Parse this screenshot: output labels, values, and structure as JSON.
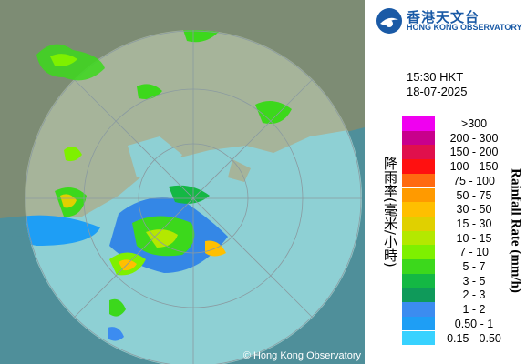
{
  "header": {
    "logo_chinese": "香港天文台",
    "logo_english": "HONG KONG OBSERVATORY"
  },
  "timestamp": {
    "time": "15:30 HKT",
    "date": "18-07-2025"
  },
  "legend": {
    "title_chinese": "降雨率(毫米/小時)",
    "title_english": "Rainfall Rate (mm/h)",
    "items": [
      {
        "label": ">300",
        "color": "#f000f0"
      },
      {
        "label": "200 - 300",
        "color": "#c8008c"
      },
      {
        "label": "150 - 200",
        "color": "#e0104c"
      },
      {
        "label": "100 - 150",
        "color": "#ff1010"
      },
      {
        "label": "75 - 100",
        "color": "#ff6a10"
      },
      {
        "label": "50 - 75",
        "color": "#ff9a00"
      },
      {
        "label": "30 - 50",
        "color": "#ffbf00"
      },
      {
        "label": "15 - 30",
        "color": "#e0d000"
      },
      {
        "label": "10 - 15",
        "color": "#b4e800"
      },
      {
        "label": "7 - 10",
        "color": "#7ef000"
      },
      {
        "label": "5 - 7",
        "color": "#3cd81c"
      },
      {
        "label": "3 - 5",
        "color": "#14b844"
      },
      {
        "label": "2 - 3",
        "color": "#0f9a5a"
      },
      {
        "label": "1 - 2",
        "color": "#3c8cf0"
      },
      {
        "label": "0.50 - 1",
        "color": "#1e9ef5"
      },
      {
        "label": "0.15 - 0.50",
        "color": "#38d2ff"
      }
    ]
  },
  "map": {
    "copyright": "© Hong Kong Observatory"
  }
}
